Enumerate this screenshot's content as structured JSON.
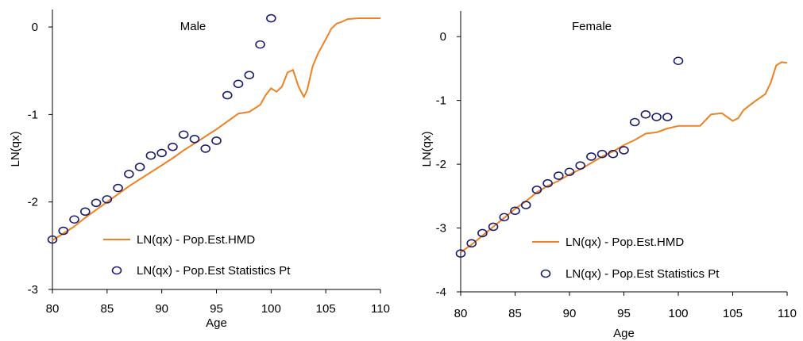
{
  "chart_data": [
    {
      "type": "line",
      "title": "Male",
      "xlabel": "Age",
      "ylabel": "LN(qx)",
      "xlim": [
        80,
        110
      ],
      "ylim": [
        -3,
        0.2
      ],
      "xticks": [
        80,
        85,
        90,
        95,
        100,
        105,
        110
      ],
      "yticks": [
        0,
        -1,
        -2,
        -3
      ],
      "grid": false,
      "legend_position": "bottom-center",
      "series": [
        {
          "name": "LN(qx) - Pop.Est.HMD",
          "kind": "line",
          "color": "#f08020",
          "x": [
            80,
            81,
            82,
            83,
            84,
            85,
            86,
            87,
            88,
            89,
            90,
            91,
            92,
            93,
            94,
            95,
            96,
            97,
            98,
            99,
            99.5,
            100,
            100.5,
            101,
            101.5,
            102,
            102.5,
            103,
            103.3,
            103.8,
            104.3,
            105,
            105.5,
            106,
            106.5,
            107,
            108,
            109,
            110
          ],
          "y": [
            -2.44,
            -2.36,
            -2.28,
            -2.18,
            -2.09,
            -2.0,
            -1.91,
            -1.82,
            -1.74,
            -1.66,
            -1.58,
            -1.5,
            -1.41,
            -1.33,
            -1.25,
            -1.17,
            -1.08,
            -0.99,
            -0.97,
            -0.89,
            -0.78,
            -0.7,
            -0.74,
            -0.68,
            -0.52,
            -0.49,
            -0.68,
            -0.8,
            -0.72,
            -0.45,
            -0.3,
            -0.14,
            -0.02,
            0.04,
            0.06,
            0.09,
            0.1,
            0.1,
            0.1
          ]
        },
        {
          "name": "LN(qx) - Pop.Est Statistics Pt",
          "kind": "scatter",
          "color": "#1a1a6e",
          "x": [
            80,
            81,
            82,
            83,
            84,
            85,
            86,
            87,
            88,
            89,
            90,
            91,
            92,
            93,
            94,
            95,
            96,
            97,
            98,
            99,
            100
          ],
          "y": [
            -2.43,
            -2.33,
            -2.2,
            -2.11,
            -2.01,
            -1.97,
            -1.84,
            -1.68,
            -1.6,
            -1.47,
            -1.44,
            -1.37,
            -1.23,
            -1.28,
            -1.39,
            -1.3,
            -0.78,
            -0.65,
            -0.55,
            -0.2,
            0.1
          ]
        }
      ]
    },
    {
      "type": "line",
      "title": "Female",
      "xlabel": "Age",
      "ylabel": "LN(qx)",
      "xlim": [
        80,
        110
      ],
      "ylim": [
        -4,
        0.4
      ],
      "xticks": [
        80,
        85,
        90,
        95,
        100,
        105,
        110
      ],
      "yticks": [
        0,
        -1,
        -2,
        -3,
        -4
      ],
      "grid": false,
      "legend_position": "bottom-center",
      "series": [
        {
          "name": "LN(qx) - Pop.Est.HMD",
          "kind": "line",
          "color": "#f08020",
          "x": [
            80,
            81,
            82,
            83,
            84,
            85,
            86,
            87,
            88,
            89,
            90,
            91,
            92,
            93,
            94,
            95,
            96,
            97,
            98,
            99,
            100,
            101,
            102,
            103,
            104,
            105,
            105.5,
            106,
            107,
            108,
            108.5,
            109,
            109.5,
            110
          ],
          "y": [
            -3.38,
            -3.26,
            -3.12,
            -2.98,
            -2.84,
            -2.7,
            -2.58,
            -2.44,
            -2.34,
            -2.26,
            -2.16,
            -2.08,
            -1.98,
            -1.88,
            -1.8,
            -1.7,
            -1.62,
            -1.52,
            -1.5,
            -1.44,
            -1.4,
            -1.4,
            -1.4,
            -1.22,
            -1.2,
            -1.32,
            -1.28,
            -1.15,
            -1.02,
            -0.9,
            -0.72,
            -0.45,
            -0.4,
            -0.41
          ]
        },
        {
          "name": "LN(qx) - Pop.Est Statistics Pt",
          "kind": "scatter",
          "color": "#1a1a6e",
          "x": [
            80,
            81,
            82,
            83,
            84,
            85,
            86,
            87,
            88,
            89,
            90,
            91,
            92,
            93,
            94,
            95,
            96,
            97,
            98,
            99,
            100
          ],
          "y": [
            -3.4,
            -3.24,
            -3.08,
            -2.98,
            -2.83,
            -2.73,
            -2.64,
            -2.4,
            -2.3,
            -2.18,
            -2.12,
            -2.02,
            -1.88,
            -1.84,
            -1.84,
            -1.78,
            -1.34,
            -1.22,
            -1.26,
            -1.26,
            -0.38
          ]
        }
      ]
    }
  ]
}
